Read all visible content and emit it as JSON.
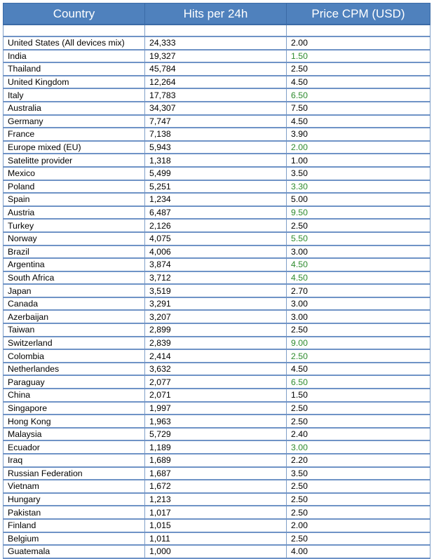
{
  "table": {
    "headers": [
      "Country",
      "Hits per 24h",
      "Price CPM (USD)"
    ],
    "rows": [
      {
        "country": "United States (All devices mix)",
        "hits": "24,333",
        "price": "2.00",
        "price_color": "#000000"
      },
      {
        "country": "India",
        "hits": "19,327",
        "price": "1.50",
        "price_color": "#2e8b2e"
      },
      {
        "country": "Thailand",
        "hits": "45,784",
        "price": "2.50",
        "price_color": "#000000"
      },
      {
        "country": "United Kingdom",
        "hits": "12,264",
        "price": "4.50",
        "price_color": "#000000"
      },
      {
        "country": "Italy",
        "hits": "17,783",
        "price": "6.50",
        "price_color": "#2e8b2e"
      },
      {
        "country": "Australia",
        "hits": "34,307",
        "price": "7.50",
        "price_color": "#000000"
      },
      {
        "country": "Germany",
        "hits": "7,747",
        "price": "4.50",
        "price_color": "#000000"
      },
      {
        "country": "France",
        "hits": "7,138",
        "price": "3.90",
        "price_color": "#000000"
      },
      {
        "country": "Europe mixed (EU)",
        "hits": "5,943",
        "price": "2.00",
        "price_color": "#2e8b2e"
      },
      {
        "country": "Satelitte provider",
        "hits": "1,318",
        "price": "1.00",
        "price_color": "#000000"
      },
      {
        "country": "Mexico",
        "hits": "5,499",
        "price": "3.50",
        "price_color": "#000000"
      },
      {
        "country": "Poland",
        "hits": "5,251",
        "price": "3.30",
        "price_color": "#2e8b2e"
      },
      {
        "country": "Spain",
        "hits": "1,234",
        "price": "5.00",
        "price_color": "#000000"
      },
      {
        "country": "Austria",
        "hits": "6,487",
        "price": "9.50",
        "price_color": "#2e8b2e"
      },
      {
        "country": "Turkey",
        "hits": "2,126",
        "price": "2.50",
        "price_color": "#000000"
      },
      {
        "country": "Norway",
        "hits": "4,075",
        "price": "5.50",
        "price_color": "#2e8b2e"
      },
      {
        "country": "Brazil",
        "hits": "4,006",
        "price": "3.00",
        "price_color": "#000000"
      },
      {
        "country": "Argentina",
        "hits": "3,874",
        "price": "4.50",
        "price_color": "#2e8b2e"
      },
      {
        "country": "South Africa",
        "hits": "3,712",
        "price": "4.50",
        "price_color": "#2e8b2e"
      },
      {
        "country": "Japan",
        "hits": "3,519",
        "price": "2.70",
        "price_color": "#000000"
      },
      {
        "country": "Canada",
        "hits": "3,291",
        "price": "3.00",
        "price_color": "#000000"
      },
      {
        "country": "Azerbaijan",
        "hits": "3,207",
        "price": "3.00",
        "price_color": "#000000"
      },
      {
        "country": "Taiwan",
        "hits": "2,899",
        "price": "2.50",
        "price_color": "#000000"
      },
      {
        "country": "Switzerland",
        "hits": "2,839",
        "price": "9.00",
        "price_color": "#2e8b2e"
      },
      {
        "country": "Colombia",
        "hits": "2,414",
        "price": "2.50",
        "price_color": "#2e8b2e"
      },
      {
        "country": "Netherlandes",
        "hits": "3,632",
        "price": "4.50",
        "price_color": "#000000"
      },
      {
        "country": "Paraguay",
        "hits": "2,077",
        "price": "6.50",
        "price_color": "#2e8b2e"
      },
      {
        "country": "China",
        "hits": "2,071",
        "price": "1.50",
        "price_color": "#000000"
      },
      {
        "country": "Singapore",
        "hits": "1,997",
        "price": "2.50",
        "price_color": "#000000"
      },
      {
        "country": "Hong Kong",
        "hits": "1,963",
        "price": "2.50",
        "price_color": "#000000"
      },
      {
        "country": "Malaysia",
        "hits": "5,729",
        "price": "2.40",
        "price_color": "#000000"
      },
      {
        "country": "Ecuador",
        "hits": "1,189",
        "price": "3.00",
        "price_color": "#2e8b2e"
      },
      {
        "country": "Iraq",
        "hits": "1,689",
        "price": "2.20",
        "price_color": "#000000"
      },
      {
        "country": "Russian Federation",
        "hits": "1,687",
        "price": "3.50",
        "price_color": "#000000"
      },
      {
        "country": "Vietnam",
        "hits": "1,672",
        "price": "2.50",
        "price_color": "#000000"
      },
      {
        "country": "Hungary",
        "hits": "1,213",
        "price": "2.50",
        "price_color": "#000000"
      },
      {
        "country": "Pakistan",
        "hits": "1,017",
        "price": "2.50",
        "price_color": "#000000"
      },
      {
        "country": "Finland",
        "hits": "1,015",
        "price": "2.00",
        "price_color": "#000000"
      },
      {
        "country": "Belgium",
        "hits": "1,011",
        "price": "2.50",
        "price_color": "#000000"
      },
      {
        "country": "Guatemala",
        "hits": "1,000",
        "price": "4.00",
        "price_color": "#000000"
      }
    ]
  },
  "colors": {
    "header_background": "#4f81bd",
    "header_text": "#ffffff",
    "grid_line": "#6f93c6",
    "highlight_price": "#2e8b2e"
  }
}
